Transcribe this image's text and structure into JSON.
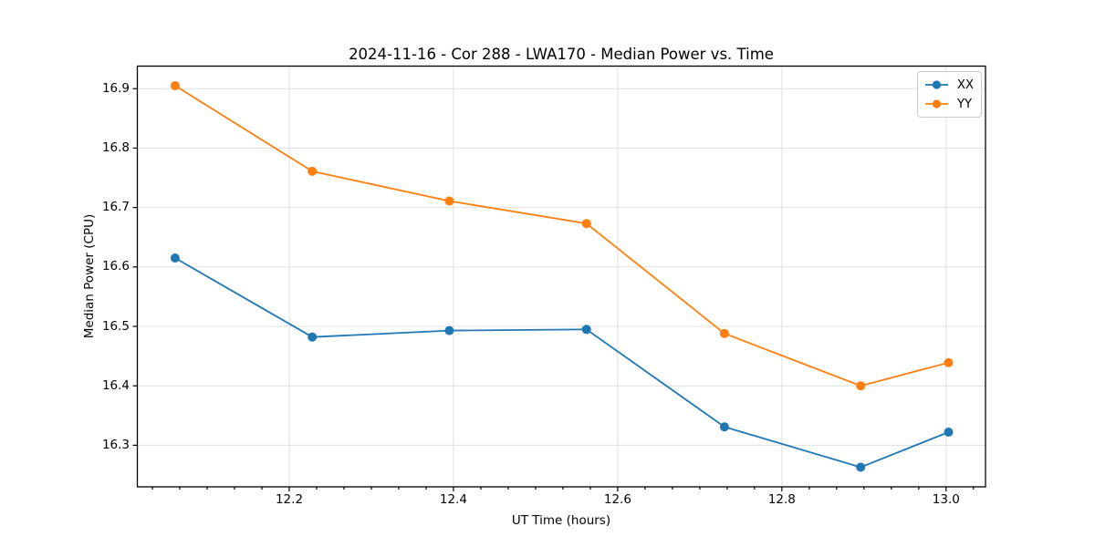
{
  "figure": {
    "background": "#ffffff"
  },
  "chart_data": {
    "type": "line",
    "title": "2024-11-16 - Cor 288 - LWA170 - Median Power vs. Time",
    "xlabel": "UT Time (hours)",
    "ylabel": "Median Power (CPU)",
    "x": [
      12.061,
      12.228,
      12.395,
      12.562,
      12.73,
      12.896,
      13.003
    ],
    "series": [
      {
        "name": "XX",
        "color": "#1f77b4",
        "values": [
          16.615,
          16.482,
          16.493,
          16.495,
          16.331,
          16.263,
          16.322
        ]
      },
      {
        "name": "YY",
        "color": "#ff7f0e",
        "values": [
          16.905,
          16.761,
          16.711,
          16.673,
          16.488,
          16.4,
          16.439
        ]
      }
    ],
    "xlim": [
      12.015,
      13.048
    ],
    "ylim": [
      16.23,
      16.938
    ],
    "x_ticks": [
      12.2,
      12.4,
      12.6,
      12.8,
      13.0
    ],
    "x_tick_labels": [
      "12.2",
      "12.4",
      "12.6",
      "12.8",
      "13.0"
    ],
    "x_minor_ticks_per_interval": 6,
    "y_ticks": [
      16.3,
      16.4,
      16.5,
      16.6,
      16.7,
      16.8,
      16.9
    ],
    "y_tick_labels": [
      "16.3",
      "16.4",
      "16.5",
      "16.6",
      "16.7",
      "16.8",
      "16.9"
    ],
    "grid": true,
    "legend_position": "top-right",
    "colors": {
      "grid": "#e0e0e0",
      "spine": "#000000",
      "tick": "#000000",
      "text": "#000000"
    },
    "marker": "circle",
    "marker_radius": 5,
    "line_width": 1.8
  }
}
